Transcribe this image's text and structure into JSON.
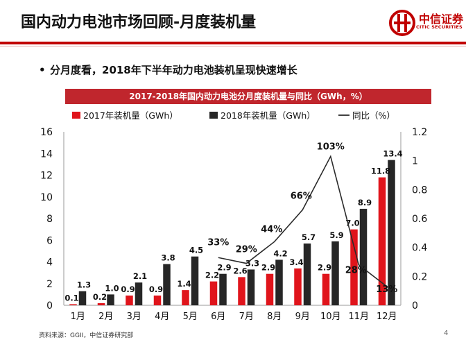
{
  "slide": {
    "title": "国内动力电池市场回顾-月度装机量",
    "bullet": "分月度看，2018年下半年动力电池装机呈现快速增长",
    "source": "资料来源：GGII，中信证券研究部",
    "page_number": "4"
  },
  "logo": {
    "name": "中信证券",
    "sub": "CITIC SECURITIES"
  },
  "colors": {
    "brand_red": "#c00000",
    "bar_2017": "#e0141b",
    "bar_2018": "#262626",
    "line": "#2b2b2b"
  },
  "chart_data": {
    "type": "bar",
    "title": "2017-2018年国内动力电池分月度装机量与同比（GWh，%）",
    "categories": [
      "1月",
      "2月",
      "3月",
      "4月",
      "5月",
      "6月",
      "7月",
      "8月",
      "9月",
      "10月",
      "11月",
      "12月"
    ],
    "series": [
      {
        "name": "2017年装机量（GWh）",
        "type": "bar",
        "axis": "left",
        "values": [
          0.1,
          0.2,
          0.9,
          0.9,
          1.4,
          2.2,
          2.6,
          2.9,
          3.4,
          2.9,
          7.0,
          11.8
        ],
        "labels": [
          "0.1",
          "0.2",
          "0.9",
          "0.9",
          "1.4",
          "2.2",
          "2.6",
          "2.9",
          "3.4",
          "2.9",
          "7.0",
          "11.8"
        ]
      },
      {
        "name": "2018年装机量（GWh）",
        "type": "bar",
        "axis": "right-bar",
        "values": [
          1.3,
          1.0,
          2.1,
          3.8,
          4.5,
          2.9,
          3.3,
          4.2,
          5.7,
          5.9,
          8.9,
          13.4
        ],
        "labels": [
          "1.3",
          "1.0",
          "2.1",
          "3.8",
          "4.5",
          "2.9",
          "3.3",
          "4.2",
          "5.7",
          "5.9",
          "8.9",
          "13.4"
        ]
      },
      {
        "name": "同比（%）",
        "type": "line",
        "axis": "right",
        "values": [
          null,
          null,
          null,
          null,
          null,
          0.33,
          0.29,
          0.44,
          0.66,
          1.03,
          0.28,
          0.13
        ],
        "labels": [
          "",
          "",
          "",
          "",
          "",
          "33%",
          "29%",
          "44%",
          "66%",
          "103%",
          "28%",
          "13%"
        ]
      }
    ],
    "y_left": {
      "min": 0,
      "max": 16,
      "ticks": [
        "0",
        "2",
        "4",
        "6",
        "8",
        "10",
        "12",
        "14",
        "16"
      ]
    },
    "y_right": {
      "min": 0,
      "max": 1.2,
      "ticks": [
        "0",
        "0.2",
        "0.4",
        "0.6",
        "0.8",
        "1",
        "1.2"
      ]
    },
    "legend_position": "top"
  }
}
